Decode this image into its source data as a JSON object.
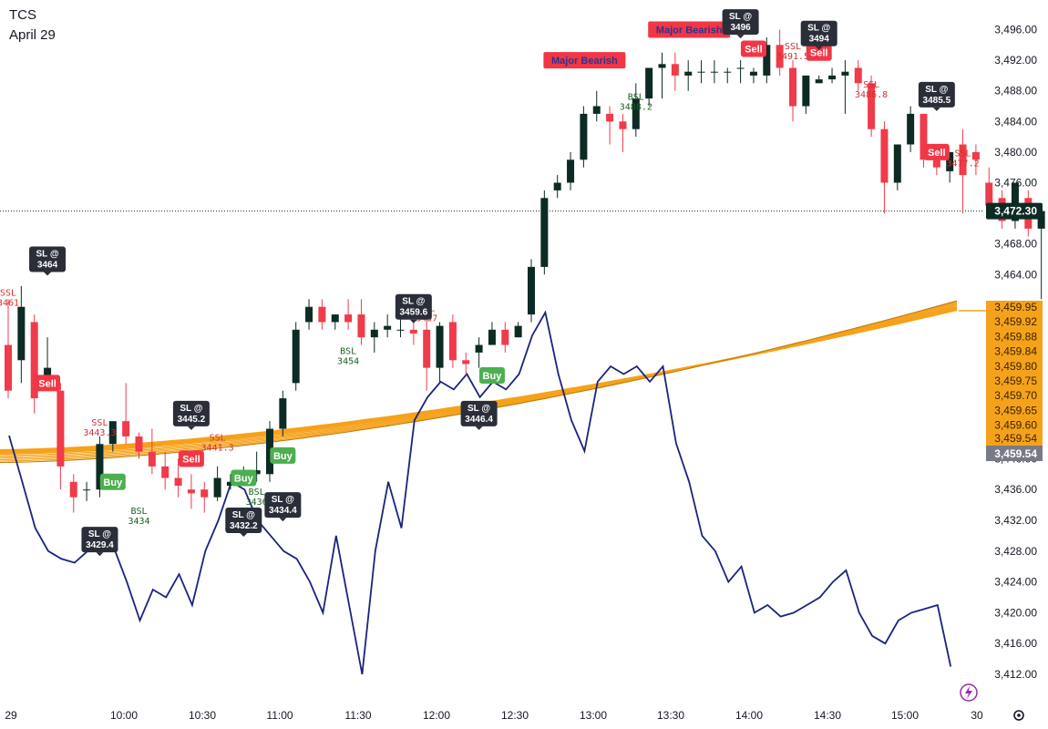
{
  "header": {
    "symbol": "TCS",
    "date": "April 29"
  },
  "colors": {
    "up": "#0d2b24",
    "down": "#ef3b4a",
    "ribbon": "#f5a21b",
    "ribbon_dark": "#c07a0a",
    "oscillator": "#1a237e",
    "sl_box": "#2a2e39",
    "buy": "#4caf50",
    "sell": "#f23645",
    "ssl_text": "#d32f2f",
    "bsl_text": "#1b5e20"
  },
  "chart_data": {
    "type": "candlestick",
    "yaxis": {
      "ticks": [
        "3,412.00",
        "3,416.00",
        "3,420.00",
        "3,424.00",
        "3,428.00",
        "3,432.00",
        "3,436.00",
        "3,440.00",
        "3,464.00",
        "3,468.00",
        "3,472.00",
        "3,476.00",
        "3,480.00",
        "3,484.00",
        "3,488.00",
        "3,492.00",
        "3,496.00"
      ],
      "tick_values": [
        3412,
        3416,
        3420,
        3424,
        3428,
        3432,
        3436,
        3440,
        3464,
        3468,
        3472,
        3476,
        3480,
        3484,
        3488,
        3492,
        3496
      ],
      "range": [
        3409.5,
        3499.5
      ]
    },
    "xaxis": {
      "ticks": [
        "29",
        "10:00",
        "10:30",
        "11:00",
        "11:30",
        "12:00",
        "12:30",
        "13:00",
        "13:30",
        "14:00",
        "14:30",
        "15:00",
        "30"
      ]
    },
    "current_price": {
      "value": 3472.3,
      "label": "3,472.30"
    },
    "ribbon_labels": [
      "3,459.95",
      "3,459.92",
      "3,459.88",
      "3,459.84",
      "3,459.80",
      "3,459.75",
      "3,459.70",
      "3,459.65",
      "3,459.60",
      "3,459.54"
    ],
    "ribbon_base_label": "3,459.54",
    "candles": [
      {
        "o": 3455,
        "h": 3461,
        "l": 3448,
        "c": 3449
      },
      {
        "o": 3453,
        "h": 3462.5,
        "l": 3450,
        "c": 3460
      },
      {
        "o": 3458,
        "h": 3459,
        "l": 3446,
        "c": 3448
      },
      {
        "o": 3450,
        "h": 3456,
        "l": 3449,
        "c": 3452
      },
      {
        "o": 3449,
        "h": 3450,
        "l": 3436,
        "c": 3439
      },
      {
        "o": 3437,
        "h": 3438,
        "l": 3433,
        "c": 3435
      },
      {
        "o": 3436,
        "h": 3437,
        "l": 3434.5,
        "c": 3436
      },
      {
        "o": 3436,
        "h": 3443,
        "l": 3435,
        "c": 3442
      },
      {
        "o": 3442,
        "h": 3445,
        "l": 3441,
        "c": 3445
      },
      {
        "o": 3445,
        "h": 3450,
        "l": 3442,
        "c": 3443
      },
      {
        "o": 3443,
        "h": 3443.5,
        "l": 3440,
        "c": 3441
      },
      {
        "o": 3441,
        "h": 3444,
        "l": 3438,
        "c": 3439
      },
      {
        "o": 3439,
        "h": 3441,
        "l": 3436,
        "c": 3437.5
      },
      {
        "o": 3437.5,
        "h": 3440,
        "l": 3435,
        "c": 3436.5
      },
      {
        "o": 3436,
        "h": 3438,
        "l": 3433.5,
        "c": 3435.5
      },
      {
        "o": 3436,
        "h": 3437,
        "l": 3433,
        "c": 3435
      },
      {
        "o": 3435,
        "h": 3439,
        "l": 3434.5,
        "c": 3437.5
      },
      {
        "o": 3436.5,
        "h": 3438,
        "l": 3436,
        "c": 3437
      },
      {
        "o": 3437,
        "h": 3439,
        "l": 3436.5,
        "c": 3438
      },
      {
        "o": 3438,
        "h": 3441,
        "l": 3437,
        "c": 3438.5
      },
      {
        "o": 3438,
        "h": 3445,
        "l": 3437,
        "c": 3444
      },
      {
        "o": 3444,
        "h": 3449,
        "l": 3443,
        "c": 3448
      },
      {
        "o": 3450,
        "h": 3458,
        "l": 3449,
        "c": 3457
      },
      {
        "o": 3458,
        "h": 3461,
        "l": 3457,
        "c": 3460
      },
      {
        "o": 3460,
        "h": 3461,
        "l": 3457,
        "c": 3458
      },
      {
        "o": 3458,
        "h": 3459,
        "l": 3457,
        "c": 3459
      },
      {
        "o": 3459,
        "h": 3461,
        "l": 3457,
        "c": 3458
      },
      {
        "o": 3459,
        "h": 3461,
        "l": 3455,
        "c": 3456
      },
      {
        "o": 3456,
        "h": 3458,
        "l": 3454,
        "c": 3457
      },
      {
        "o": 3457,
        "h": 3459,
        "l": 3456,
        "c": 3457.5
      },
      {
        "o": 3457,
        "h": 3459,
        "l": 3456,
        "c": 3457
      },
      {
        "o": 3457,
        "h": 3458,
        "l": 3455,
        "c": 3456.5
      },
      {
        "o": 3457,
        "h": 3460,
        "l": 3449,
        "c": 3452
      },
      {
        "o": 3452,
        "h": 3458,
        "l": 3450,
        "c": 3457.5
      },
      {
        "o": 3458,
        "h": 3459,
        "l": 3452,
        "c": 3453
      },
      {
        "o": 3453,
        "h": 3454,
        "l": 3451,
        "c": 3452.5
      },
      {
        "o": 3454,
        "h": 3456,
        "l": 3452,
        "c": 3455
      },
      {
        "o": 3455,
        "h": 3458,
        "l": 3455,
        "c": 3457
      },
      {
        "o": 3457,
        "h": 3458,
        "l": 3454,
        "c": 3455
      },
      {
        "o": 3456,
        "h": 3458,
        "l": 3456,
        "c": 3457.5
      },
      {
        "o": 3459,
        "h": 3466,
        "l": 3458,
        "c": 3465
      },
      {
        "o": 3465,
        "h": 3475,
        "l": 3464,
        "c": 3474
      },
      {
        "o": 3475,
        "h": 3477,
        "l": 3474,
        "c": 3476
      },
      {
        "o": 3476,
        "h": 3480,
        "l": 3475,
        "c": 3479
      },
      {
        "o": 3479,
        "h": 3486,
        "l": 3478,
        "c": 3485
      },
      {
        "o": 3485,
        "h": 3488,
        "l": 3484,
        "c": 3486
      },
      {
        "o": 3485,
        "h": 3486,
        "l": 3481,
        "c": 3484
      },
      {
        "o": 3484,
        "h": 3485,
        "l": 3480,
        "c": 3483
      },
      {
        "o": 3483,
        "h": 3489,
        "l": 3482,
        "c": 3487
      },
      {
        "o": 3487,
        "h": 3491,
        "l": 3486,
        "c": 3491
      },
      {
        "o": 3491,
        "h": 3493,
        "l": 3487,
        "c": 3491.5
      },
      {
        "o": 3491.5,
        "h": 3493,
        "l": 3488,
        "c": 3490
      },
      {
        "o": 3490,
        "h": 3492,
        "l": 3488,
        "c": 3490.5
      },
      {
        "o": 3490.5,
        "h": 3492,
        "l": 3489,
        "c": 3490.5
      },
      {
        "o": 3490.5,
        "h": 3492,
        "l": 3489,
        "c": 3490.5
      },
      {
        "o": 3490.5,
        "h": 3491,
        "l": 3489,
        "c": 3490.5
      },
      {
        "o": 3491,
        "h": 3492,
        "l": 3489,
        "c": 3491
      },
      {
        "o": 3490,
        "h": 3491,
        "l": 3489,
        "c": 3490.5
      },
      {
        "o": 3490,
        "h": 3495,
        "l": 3489,
        "c": 3494
      },
      {
        "o": 3494,
        "h": 3496,
        "l": 3490,
        "c": 3491
      },
      {
        "o": 3491,
        "h": 3492,
        "l": 3484,
        "c": 3486
      },
      {
        "o": 3486,
        "h": 3490,
        "l": 3485,
        "c": 3490
      },
      {
        "o": 3489,
        "h": 3490,
        "l": 3489,
        "c": 3489.5
      },
      {
        "o": 3489.5,
        "h": 3491,
        "l": 3489,
        "c": 3490
      },
      {
        "o": 3490,
        "h": 3492,
        "l": 3485,
        "c": 3490.5
      },
      {
        "o": 3491,
        "h": 3492,
        "l": 3488,
        "c": 3489
      },
      {
        "o": 3489,
        "h": 3490,
        "l": 3482,
        "c": 3483
      },
      {
        "o": 3483,
        "h": 3484,
        "l": 3472,
        "c": 3476
      },
      {
        "o": 3476,
        "h": 3481,
        "l": 3475,
        "c": 3481
      },
      {
        "o": 3481,
        "h": 3486,
        "l": 3480,
        "c": 3485
      },
      {
        "o": 3485,
        "h": 3485,
        "l": 3478,
        "c": 3479
      },
      {
        "o": 3479,
        "h": 3480,
        "l": 3477,
        "c": 3478
      },
      {
        "o": 3477.5,
        "h": 3480,
        "l": 3476,
        "c": 3480
      },
      {
        "o": 3481,
        "h": 3483,
        "l": 3472,
        "c": 3477
      },
      {
        "o": 3480,
        "h": 3481,
        "l": 3477,
        "c": 3479
      },
      {
        "o": 3476,
        "h": 3478,
        "l": 3472,
        "c": 3473
      },
      {
        "o": 3474,
        "h": 3475,
        "l": 3470,
        "c": 3471
      },
      {
        "o": 3471,
        "h": 3476,
        "l": 3470,
        "c": 3476
      },
      {
        "o": 3474,
        "h": 3475,
        "l": 3469,
        "c": 3470
      },
      {
        "o": 3470,
        "h": 3473,
        "l": 3461,
        "c": 3472.3
      }
    ],
    "sl_labels": [
      {
        "text": "SL @ 3464",
        "line1": "SL @",
        "line2": "3464",
        "bar": 3,
        "price": 3466
      },
      {
        "text": "SL @ 3445.2",
        "line1": "SL @",
        "line2": "3445.2",
        "bar": 14,
        "price": 3446
      },
      {
        "text": "SL @ 3429.4",
        "line1": "SL @",
        "line2": "3429.4",
        "bar": 7,
        "price": 3429.5
      },
      {
        "text": "SL @ 3432.2",
        "line1": "SL @",
        "line2": "3432.2",
        "bar": 18,
        "price": 3432
      },
      {
        "text": "SL @ 3434.4",
        "line1": "SL @",
        "line2": "3434.4",
        "bar": 21,
        "price": 3434
      },
      {
        "text": "SL @ 3459.6",
        "line1": "SL @",
        "line2": "3459.6",
        "bar": 31,
        "price": 3460
      },
      {
        "text": "SL @ 3446.4",
        "line1": "SL @",
        "line2": "3446.4",
        "bar": 36,
        "price": 3446
      },
      {
        "text": "SL @ 3496",
        "line1": "SL @",
        "line2": "3496",
        "bar": 56,
        "price": 3497
      },
      {
        "text": "SL @ 3494",
        "line1": "SL @",
        "line2": "3494",
        "bar": 62,
        "price": 3495.5
      },
      {
        "text": "SL @ 3485.5",
        "line1": "SL @",
        "line2": "3485.5",
        "bar": 71,
        "price": 3487.5
      }
    ],
    "ssl_labels": [
      {
        "line1": "SSL",
        "line2": "3461",
        "bar": 0,
        "price": 3460
      },
      {
        "line1": "SSL",
        "line2": "3443.3",
        "bar": 7,
        "price": 3443
      },
      {
        "line1": "SSL",
        "line2": "3441.3",
        "bar": 16,
        "price": 3441
      },
      {
        "line1": "SSL",
        "line2": "3457",
        "bar": 32,
        "price": 3458
      },
      {
        "line1": "SSL",
        "line2": "3491.5",
        "bar": 60,
        "price": 3492
      },
      {
        "line1": "SSL",
        "line2": "3486.8",
        "bar": 66,
        "price": 3487
      },
      {
        "line1": "SSL",
        "line2": "3477.2",
        "bar": 73,
        "price": 3478
      }
    ],
    "bsl_labels": [
      {
        "line1": "BSL",
        "line2": "3434",
        "bar": 10,
        "price": 3434
      },
      {
        "line1": "BSL",
        "line2": "3436",
        "bar": 19,
        "price": 3436.5
      },
      {
        "line1": "BSL",
        "line2": "3454",
        "bar": 26,
        "price": 3455
      },
      {
        "line1": "BSL",
        "line2": "3488.2",
        "bar": 48,
        "price": 3488
      }
    ],
    "signals": [
      {
        "text": "Sell",
        "type": "sell",
        "bar": 3,
        "price": 3450
      },
      {
        "text": "Sell",
        "type": "sell",
        "bar": 14,
        "price": 3440
      },
      {
        "text": "Buy",
        "type": "buy",
        "bar": 8,
        "price": 3437
      },
      {
        "text": "Buy",
        "type": "buy",
        "bar": 18,
        "price": 3437.5
      },
      {
        "text": "Buy",
        "type": "buy",
        "bar": 21,
        "price": 3440.5
      },
      {
        "text": "Buy",
        "type": "buy",
        "bar": 37,
        "price": 3451
      },
      {
        "text": "Sell",
        "type": "sell",
        "bar": 57,
        "price": 3493.5
      },
      {
        "text": "Sell",
        "type": "sell",
        "bar": 71,
        "price": 3480
      },
      {
        "text": "Sell",
        "type": "sell",
        "bar": 31,
        "price": 3459.5
      },
      {
        "text": "Sell",
        "type": "sell",
        "bar": 62,
        "price": 3493
      }
    ],
    "major_labels": [
      {
        "text": "Major Bearish",
        "bar": 44,
        "price": 3492
      },
      {
        "text": "Major Bearish",
        "bar": 52,
        "price": 3496
      }
    ],
    "oscillator": [
      3443,
      3437,
      3431,
      3428,
      3427,
      3426.5,
      3428,
      3429.5,
      3428.5,
      3424,
      3419,
      3423,
      3422,
      3425,
      3421,
      3428,
      3432,
      3437,
      3436,
      3432,
      3430,
      3428,
      3427,
      3424,
      3420,
      3430,
      3421,
      3412,
      3428,
      3437,
      3431,
      3445,
      3448,
      3450,
      3449,
      3451,
      3448,
      3450,
      3449,
      3451,
      3456,
      3459,
      3451,
      3445,
      3441,
      3450,
      3452,
      3451,
      3452,
      3450,
      3452,
      3442,
      3437,
      3430,
      3428,
      3424,
      3426,
      3420,
      3421,
      3419.5,
      3420,
      3421,
      3422,
      3424,
      3425.5,
      3420,
      3417,
      3416,
      3419,
      3420,
      3420.5,
      3421,
      3413
    ],
    "ribbon_start": 3436,
    "ribbon_end": 3459.95
  },
  "footer": {
    "lightning_icon": "lightning-icon",
    "settings_icon": "gear-icon"
  }
}
